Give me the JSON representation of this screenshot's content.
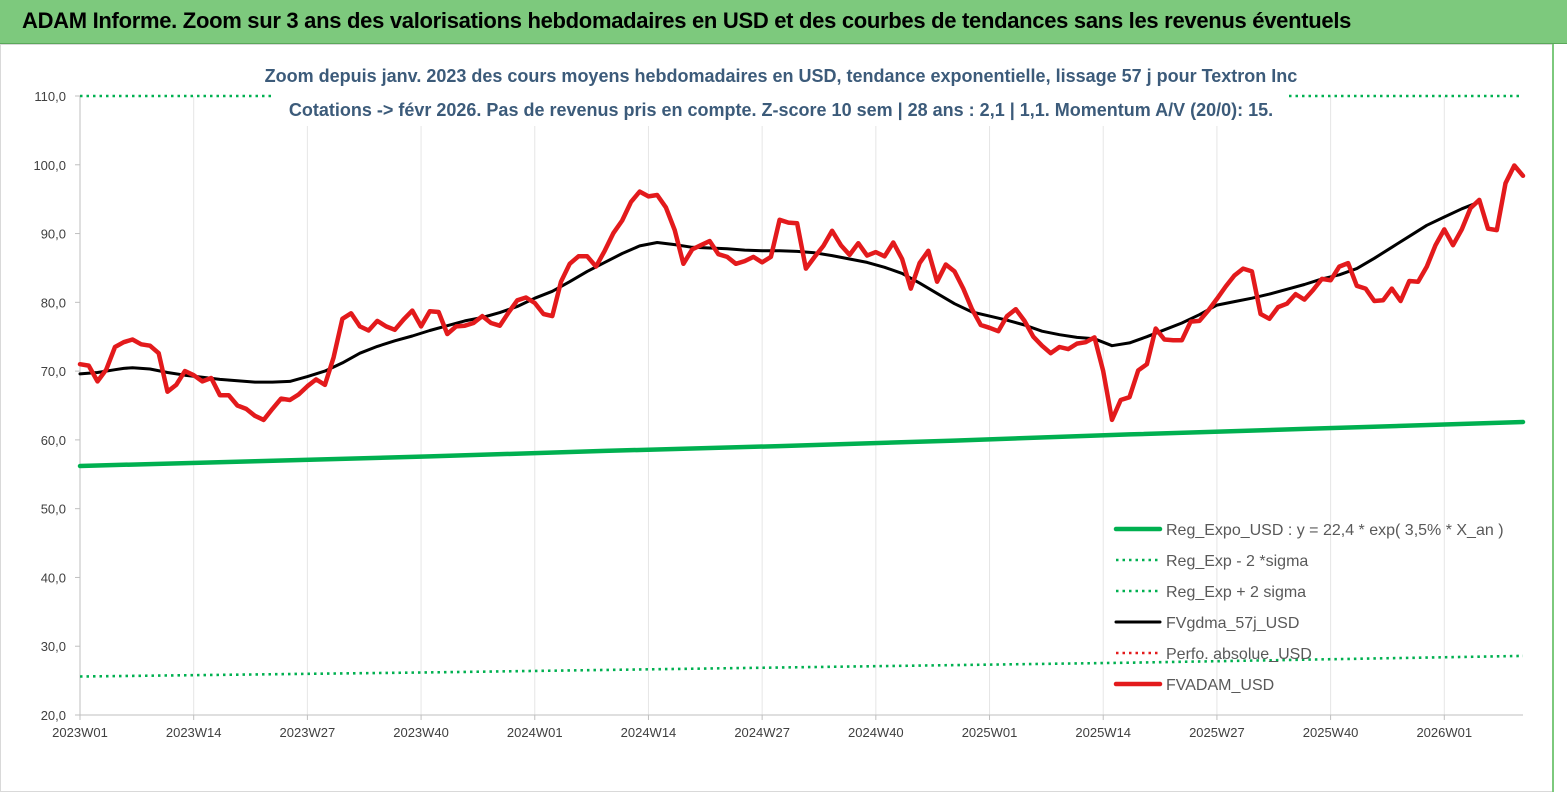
{
  "header": {
    "title": "ADAM Informe. Zoom sur 3 ans des valorisations hebdomadaires en USD et des courbes de tendances sans les revenus éventuels"
  },
  "colors": {
    "header_bg": "#7dc97d",
    "reg_expo": "#00b050",
    "fvgdma": "#000000",
    "fvadam": "#e31a1c",
    "perfo": "#e31a1c",
    "title_text": "#3c5b7a"
  },
  "chart_data": {
    "type": "line",
    "title": "Zoom depuis janv. 2023 des cours moyens hebdomadaires en USD, tendance exponentielle, lissage 57 j pour Textron Inc",
    "subtitle": "Cotations -> févr 2026.  Pas de revenus pris en compte. Z-score 10 sem  | 28 ans : 2,1  | 1,1. Momentum A/V (20/0): 15.",
    "xlabel": "",
    "ylabel": "",
    "ylim": [
      20,
      110
    ],
    "yticks": [
      "20,0",
      "30,0",
      "40,0",
      "50,0",
      "60,0",
      "70,0",
      "80,0",
      "90,0",
      "100,0",
      "110,0"
    ],
    "x_tick_labels": [
      "2023W01",
      "2023W14",
      "2023W27",
      "2023W40",
      "2024W01",
      "2024W14",
      "2024W27",
      "2024W40",
      "2025W01",
      "2025W14",
      "2025W27",
      "2025W40",
      "2026W01"
    ],
    "x_tick_weeks": [
      0,
      13,
      26,
      39,
      52,
      65,
      78,
      91,
      104,
      117,
      130,
      143,
      156
    ],
    "week_count": 166,
    "grid": "vertical",
    "legend_position": "bottom-right",
    "series": [
      {
        "name": "Reg_Expo_USD : y = 22,4 * exp( 3,5% *  X_an )",
        "style": "solid-thick",
        "color": "#00b050",
        "points": [
          [
            0,
            56.2
          ],
          [
            20,
            56.9
          ],
          [
            40,
            57.6
          ],
          [
            60,
            58.4
          ],
          [
            80,
            59.1
          ],
          [
            100,
            59.9
          ],
          [
            120,
            60.8
          ],
          [
            140,
            61.6
          ],
          [
            165,
            62.6
          ]
        ]
      },
      {
        "name": "Reg_Exp - 2 *sigma",
        "style": "dotted",
        "color": "#00b050",
        "points": [
          [
            0,
            25.6
          ],
          [
            40,
            26.2
          ],
          [
            80,
            26.9
          ],
          [
            120,
            27.6
          ],
          [
            165,
            28.6
          ]
        ]
      },
      {
        "name": "Reg_Exp + 2 sigma",
        "style": "dotted",
        "color": "#00b050",
        "points": [
          [
            0,
            110.0
          ],
          [
            165,
            110.0
          ]
        ]
      },
      {
        "name": "FVgdma_57j_USD",
        "style": "solid",
        "color": "#000000",
        "points": [
          [
            0,
            69.6
          ],
          [
            2,
            69.8
          ],
          [
            4,
            70.2
          ],
          [
            5,
            70.4
          ],
          [
            6,
            70.5
          ],
          [
            8,
            70.3
          ],
          [
            10,
            69.8
          ],
          [
            12,
            69.4
          ],
          [
            14,
            69.1
          ],
          [
            16,
            68.8
          ],
          [
            18,
            68.6
          ],
          [
            20,
            68.4
          ],
          [
            22,
            68.4
          ],
          [
            24,
            68.5
          ],
          [
            26,
            69.2
          ],
          [
            28,
            70.0
          ],
          [
            30,
            71.2
          ],
          [
            32,
            72.6
          ],
          [
            34,
            73.6
          ],
          [
            36,
            74.4
          ],
          [
            38,
            75.1
          ],
          [
            40,
            75.9
          ],
          [
            42,
            76.6
          ],
          [
            44,
            77.3
          ],
          [
            46,
            77.8
          ],
          [
            48,
            78.5
          ],
          [
            50,
            79.4
          ],
          [
            52,
            80.6
          ],
          [
            54,
            81.6
          ],
          [
            56,
            83.0
          ],
          [
            58,
            84.5
          ],
          [
            60,
            85.8
          ],
          [
            62,
            87.1
          ],
          [
            64,
            88.2
          ],
          [
            66,
            88.7
          ],
          [
            68,
            88.4
          ],
          [
            70,
            88.0
          ],
          [
            72,
            87.9
          ],
          [
            74,
            87.8
          ],
          [
            76,
            87.6
          ],
          [
            78,
            87.5
          ],
          [
            80,
            87.5
          ],
          [
            82,
            87.4
          ],
          [
            84,
            87.2
          ],
          [
            86,
            86.8
          ],
          [
            88,
            86.3
          ],
          [
            90,
            85.8
          ],
          [
            92,
            85.1
          ],
          [
            94,
            84.2
          ],
          [
            96,
            82.8
          ],
          [
            98,
            81.3
          ],
          [
            100,
            79.8
          ],
          [
            102,
            78.6
          ],
          [
            104,
            78.0
          ],
          [
            106,
            77.4
          ],
          [
            108,
            76.7
          ],
          [
            110,
            75.8
          ],
          [
            112,
            75.3
          ],
          [
            114,
            74.9
          ],
          [
            116,
            74.7
          ],
          [
            118,
            73.7
          ],
          [
            120,
            74.1
          ],
          [
            122,
            75.0
          ],
          [
            124,
            76.0
          ],
          [
            126,
            77.0
          ],
          [
            128,
            78.2
          ],
          [
            130,
            79.6
          ],
          [
            132,
            80.1
          ],
          [
            134,
            80.6
          ],
          [
            136,
            81.2
          ],
          [
            138,
            81.9
          ],
          [
            140,
            82.6
          ],
          [
            142,
            83.4
          ],
          [
            144,
            84.0
          ],
          [
            146,
            84.9
          ],
          [
            148,
            86.4
          ],
          [
            150,
            88.0
          ],
          [
            152,
            89.6
          ],
          [
            154,
            91.2
          ],
          [
            156,
            92.4
          ],
          [
            158,
            93.6
          ],
          [
            160,
            94.6
          ]
        ]
      },
      {
        "name": "Perfo. absolue_USD",
        "style": "dotted",
        "color": "#e31a1c",
        "points": []
      },
      {
        "name": "FVADAM_USD",
        "style": "solid-thick",
        "color": "#e31a1c",
        "points": [
          [
            0,
            71.0
          ],
          [
            1,
            70.8
          ],
          [
            2,
            68.5
          ],
          [
            3,
            70.2
          ],
          [
            4,
            73.5
          ],
          [
            5,
            74.2
          ],
          [
            6,
            74.6
          ],
          [
            7,
            73.9
          ],
          [
            8,
            73.7
          ],
          [
            9,
            72.6
          ],
          [
            10,
            67.0
          ],
          [
            11,
            68.0
          ],
          [
            12,
            70.0
          ],
          [
            13,
            69.4
          ],
          [
            14,
            68.5
          ],
          [
            15,
            69.0
          ],
          [
            16,
            66.5
          ],
          [
            17,
            66.5
          ],
          [
            18,
            65.0
          ],
          [
            19,
            64.5
          ],
          [
            20,
            63.5
          ],
          [
            21,
            62.9
          ],
          [
            22,
            64.5
          ],
          [
            23,
            66.0
          ],
          [
            24,
            65.8
          ],
          [
            25,
            66.6
          ],
          [
            26,
            67.8
          ],
          [
            27,
            68.8
          ],
          [
            28,
            68.0
          ],
          [
            29,
            72.0
          ],
          [
            30,
            77.6
          ],
          [
            31,
            78.4
          ],
          [
            32,
            76.5
          ],
          [
            33,
            75.9
          ],
          [
            34,
            77.3
          ],
          [
            35,
            76.5
          ],
          [
            36,
            76.0
          ],
          [
            37,
            77.5
          ],
          [
            38,
            78.8
          ],
          [
            39,
            76.5
          ],
          [
            40,
            78.7
          ],
          [
            41,
            78.6
          ],
          [
            42,
            75.4
          ],
          [
            43,
            76.5
          ],
          [
            44,
            76.6
          ],
          [
            45,
            77.0
          ],
          [
            46,
            78.0
          ],
          [
            47,
            77.0
          ],
          [
            48,
            76.6
          ],
          [
            49,
            78.5
          ],
          [
            50,
            80.3
          ],
          [
            51,
            80.7
          ],
          [
            52,
            79.9
          ],
          [
            53,
            78.3
          ],
          [
            54,
            78.0
          ],
          [
            55,
            83.0
          ],
          [
            56,
            85.6
          ],
          [
            57,
            86.7
          ],
          [
            58,
            86.7
          ],
          [
            59,
            85.2
          ],
          [
            60,
            87.5
          ],
          [
            61,
            90.1
          ],
          [
            62,
            91.9
          ],
          [
            63,
            94.6
          ],
          [
            64,
            96.1
          ],
          [
            65,
            95.4
          ],
          [
            66,
            95.6
          ],
          [
            67,
            93.8
          ],
          [
            68,
            90.5
          ],
          [
            69,
            85.6
          ],
          [
            70,
            87.7
          ],
          [
            71,
            88.3
          ],
          [
            72,
            88.9
          ],
          [
            73,
            87.0
          ],
          [
            74,
            86.6
          ],
          [
            75,
            85.6
          ],
          [
            76,
            86.0
          ],
          [
            77,
            86.6
          ],
          [
            78,
            85.8
          ],
          [
            79,
            86.6
          ],
          [
            80,
            92.0
          ],
          [
            81,
            91.6
          ],
          [
            82,
            91.5
          ],
          [
            83,
            84.9
          ],
          [
            84,
            86.6
          ],
          [
            85,
            88.2
          ],
          [
            86,
            90.4
          ],
          [
            87,
            88.3
          ],
          [
            88,
            86.9
          ],
          [
            89,
            88.6
          ],
          [
            90,
            86.8
          ],
          [
            91,
            87.3
          ],
          [
            92,
            86.7
          ],
          [
            93,
            88.7
          ],
          [
            94,
            86.3
          ],
          [
            95,
            82.0
          ],
          [
            96,
            85.7
          ],
          [
            97,
            87.5
          ],
          [
            98,
            83.0
          ],
          [
            99,
            85.5
          ],
          [
            100,
            84.5
          ],
          [
            101,
            82.0
          ],
          [
            102,
            79.0
          ],
          [
            103,
            76.7
          ],
          [
            104,
            76.3
          ],
          [
            105,
            75.8
          ],
          [
            106,
            78.0
          ],
          [
            107,
            79.0
          ],
          [
            108,
            77.3
          ],
          [
            109,
            75.0
          ],
          [
            110,
            73.7
          ],
          [
            111,
            72.6
          ],
          [
            112,
            73.5
          ],
          [
            113,
            73.2
          ],
          [
            114,
            74.0
          ],
          [
            115,
            74.2
          ],
          [
            116,
            74.9
          ],
          [
            117,
            70.0
          ],
          [
            118,
            62.9
          ],
          [
            119,
            65.8
          ],
          [
            120,
            66.2
          ],
          [
            121,
            70.1
          ],
          [
            122,
            71.0
          ],
          [
            123,
            76.2
          ],
          [
            124,
            74.6
          ],
          [
            125,
            74.5
          ],
          [
            126,
            74.5
          ],
          [
            127,
            77.2
          ],
          [
            128,
            77.3
          ],
          [
            129,
            78.8
          ],
          [
            130,
            80.5
          ],
          [
            131,
            82.3
          ],
          [
            132,
            83.9
          ],
          [
            133,
            84.9
          ],
          [
            134,
            84.5
          ],
          [
            135,
            78.3
          ],
          [
            136,
            77.6
          ],
          [
            137,
            79.3
          ],
          [
            138,
            79.8
          ],
          [
            139,
            81.2
          ],
          [
            140,
            80.4
          ],
          [
            141,
            81.8
          ],
          [
            142,
            83.4
          ],
          [
            143,
            83.2
          ],
          [
            144,
            85.2
          ],
          [
            145,
            85.7
          ],
          [
            146,
            82.4
          ],
          [
            147,
            82.0
          ],
          [
            148,
            80.2
          ],
          [
            149,
            80.3
          ],
          [
            150,
            82.0
          ],
          [
            151,
            80.2
          ],
          [
            152,
            83.1
          ],
          [
            153,
            83.0
          ],
          [
            154,
            85.2
          ],
          [
            155,
            88.3
          ],
          [
            156,
            90.6
          ],
          [
            157,
            88.3
          ],
          [
            158,
            90.6
          ],
          [
            159,
            93.7
          ],
          [
            160,
            94.9
          ],
          [
            161,
            90.7
          ],
          [
            162,
            90.5
          ],
          [
            163,
            97.3
          ],
          [
            164,
            99.9
          ],
          [
            165,
            98.4
          ]
        ]
      }
    ]
  }
}
